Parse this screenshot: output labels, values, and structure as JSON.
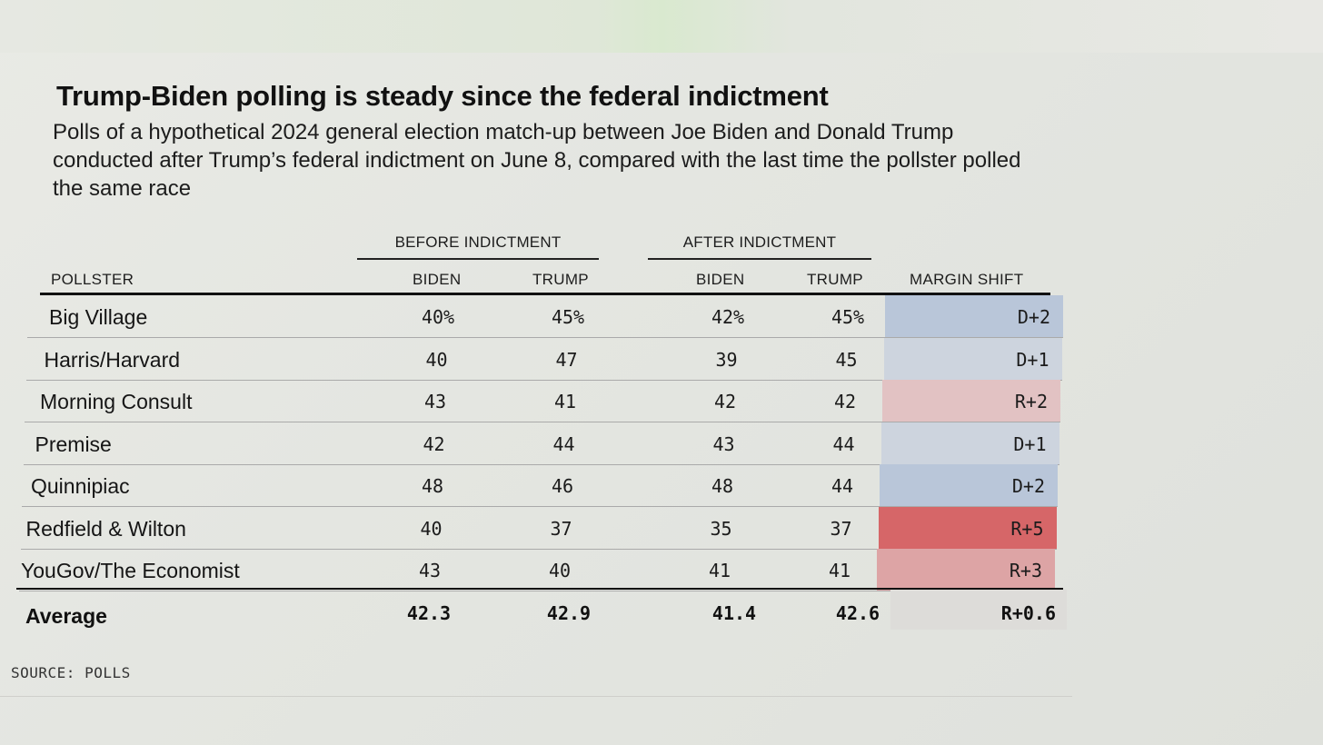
{
  "chart_data": {
    "type": "table",
    "title": "Trump-Biden polling is steady since the federal indictment",
    "subtitle": "Polls of a hypothetical 2024 general election match-up between Joe Biden and Donald Trump conducted after Trump’s federal indictment on June 8, compared with the last time the pollster polled the same race",
    "column_groups": [
      "BEFORE INDICTMENT",
      "AFTER INDICTMENT"
    ],
    "columns": [
      "POLLSTER",
      "BIDEN",
      "TRUMP",
      "BIDEN",
      "TRUMP",
      "MARGIN SHIFT"
    ],
    "rows": [
      {
        "pollster": "Big Village",
        "before_biden": "40%",
        "before_trump": "45%",
        "after_biden": "42%",
        "after_trump": "45%",
        "shift": "D+2",
        "shift_color": "#b9c6d9"
      },
      {
        "pollster": "Harris/Harvard",
        "before_biden": "40",
        "before_trump": "47",
        "after_biden": "39",
        "after_trump": "45",
        "shift": "D+1",
        "shift_color": "#cdd4de"
      },
      {
        "pollster": "Morning Consult",
        "before_biden": "43",
        "before_trump": "41",
        "after_biden": "42",
        "after_trump": "42",
        "shift": "R+2",
        "shift_color": "#e2c2c3"
      },
      {
        "pollster": "Premise",
        "before_biden": "42",
        "before_trump": "44",
        "after_biden": "43",
        "after_trump": "44",
        "shift": "D+1",
        "shift_color": "#cdd4de"
      },
      {
        "pollster": "Quinnipiac",
        "before_biden": "48",
        "before_trump": "46",
        "after_biden": "48",
        "after_trump": "44",
        "shift": "D+2",
        "shift_color": "#b9c6d9"
      },
      {
        "pollster": "Redfield & Wilton",
        "before_biden": "40",
        "before_trump": "37",
        "after_biden": "35",
        "after_trump": "37",
        "shift": "R+5",
        "shift_color": "#d66668"
      },
      {
        "pollster": "YouGov/The Economist",
        "before_biden": "43",
        "before_trump": "40",
        "after_biden": "41",
        "after_trump": "41",
        "shift": "R+3",
        "shift_color": "#dda4a5"
      }
    ],
    "average": {
      "label": "Average",
      "before_biden": "42.3",
      "before_trump": "42.9",
      "after_biden": "41.4",
      "after_trump": "42.6",
      "shift": "R+0.6"
    },
    "source": "SOURCE: POLLS"
  }
}
